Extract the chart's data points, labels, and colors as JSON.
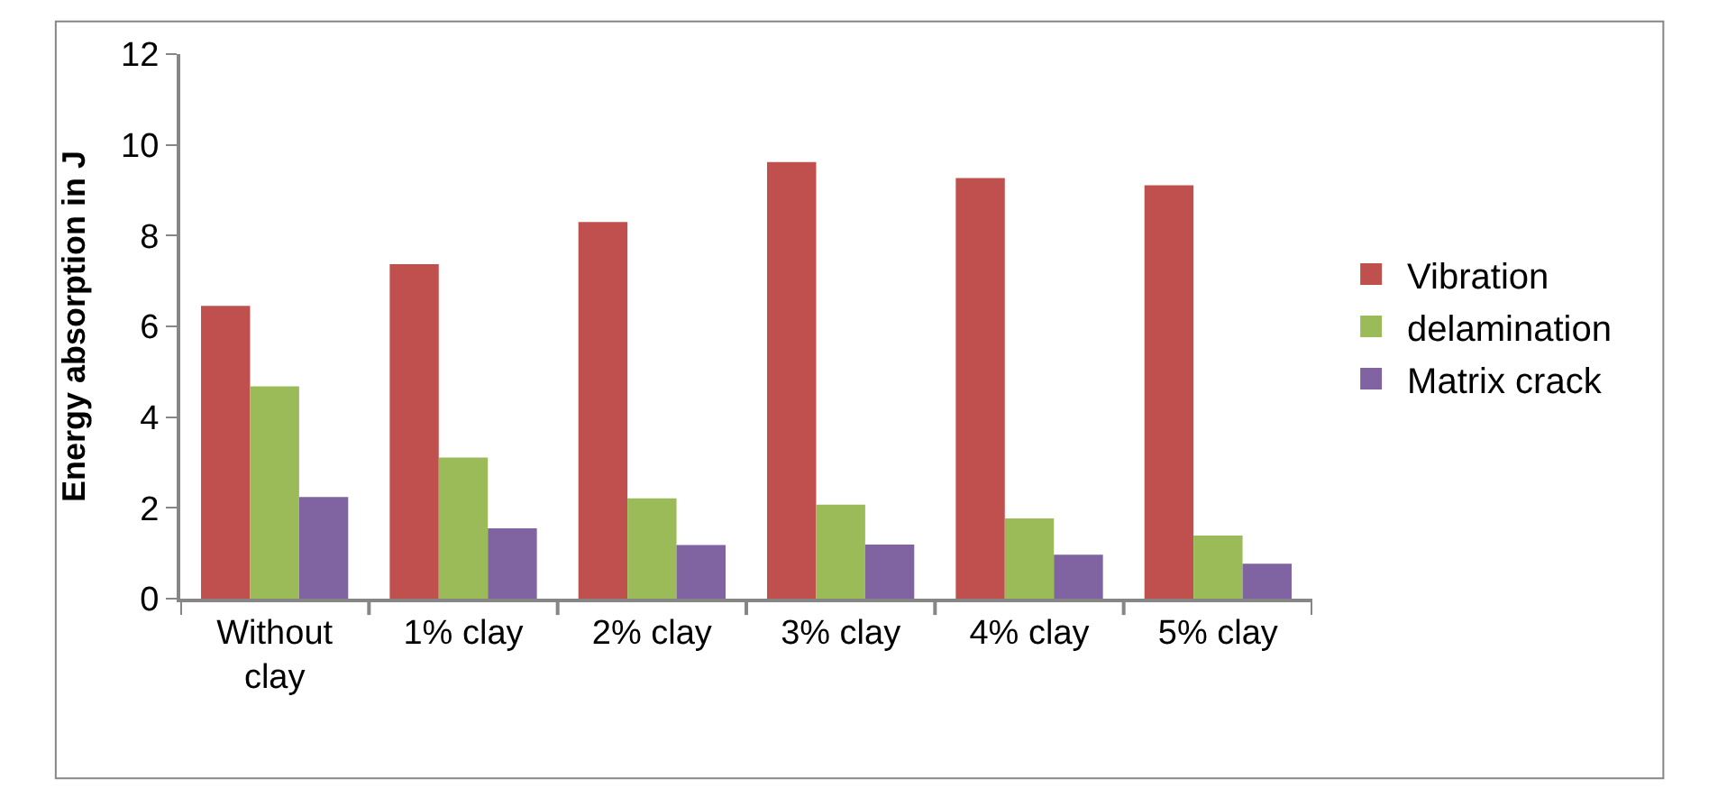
{
  "chart_data": {
    "type": "bar",
    "ylabel": "Energy absorption in J",
    "categories": [
      "Without clay",
      "1% clay",
      "2% clay",
      "3% clay",
      "4% clay",
      "5% clay"
    ],
    "series": [
      {
        "name": "Vibration",
        "color": "#c0504d",
        "values": [
          6.45,
          7.37,
          8.3,
          9.62,
          9.27,
          9.11
        ]
      },
      {
        "name": "delamination",
        "color": "#9bbb59",
        "values": [
          4.68,
          3.11,
          2.21,
          2.07,
          1.77,
          1.39
        ]
      },
      {
        "name": "Matrix crack",
        "color": "#8064a2",
        "values": [
          2.24,
          1.55,
          1.18,
          1.19,
          0.97,
          0.77
        ]
      }
    ],
    "ylim": [
      0,
      12
    ],
    "yticks": [
      0,
      2,
      4,
      6,
      8,
      10,
      12
    ],
    "legend": "right"
  }
}
